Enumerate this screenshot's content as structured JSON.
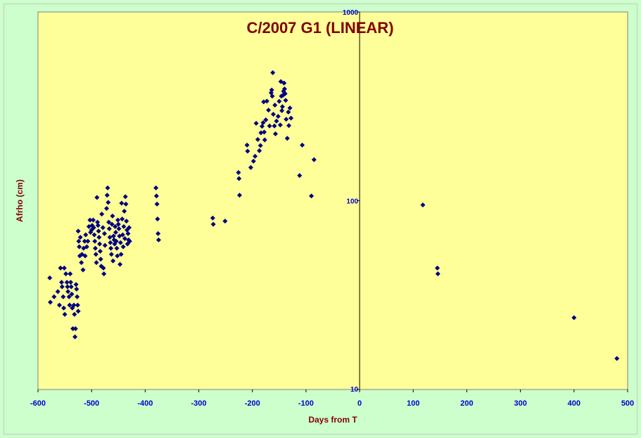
{
  "chart_data": {
    "type": "scatter",
    "title": "C/2007 G1 (LINEAR)",
    "xlabel": "Days from T",
    "ylabel": "Afrho (cm)",
    "xlim": [
      -600,
      500
    ],
    "ylim": [
      10,
      1000
    ],
    "y_scale": "log",
    "x_ticks": [
      -600,
      -500,
      -400,
      -300,
      -200,
      -100,
      0,
      100,
      200,
      300,
      400,
      500
    ],
    "y_ticks": [
      10,
      100,
      1000
    ],
    "grid": false,
    "legend": "none",
    "colors": {
      "plot_bg": "#ffff99",
      "page_bg": "#ccffcc",
      "marker": "#000080",
      "text": "#800000",
      "ticks": "#0000cc"
    },
    "series": [
      {
        "points": [
          [
            -578,
            39
          ],
          [
            -577,
            29
          ],
          [
            -570,
            31
          ],
          [
            -563,
            33
          ],
          [
            -560,
            28
          ],
          [
            -558,
            44
          ],
          [
            -556,
            37
          ],
          [
            -555,
            35
          ],
          [
            -553,
            31
          ],
          [
            -552,
            27
          ],
          [
            -551,
            44
          ],
          [
            -550,
            25
          ],
          [
            -548,
            41
          ],
          [
            -546,
            37
          ],
          [
            -545,
            35
          ],
          [
            -544,
            33
          ],
          [
            -542,
            31
          ],
          [
            -541,
            28
          ],
          [
            -540,
            41
          ],
          [
            -539,
            37
          ],
          [
            -538,
            35
          ],
          [
            -537,
            32
          ],
          [
            -536,
            27
          ],
          [
            -535,
            21
          ],
          [
            -533,
            28
          ],
          [
            -532,
            25
          ],
          [
            -531,
            19
          ],
          [
            -530,
            21
          ],
          [
            -529,
            36
          ],
          [
            -528,
            34
          ],
          [
            -527,
            31
          ],
          [
            -526,
            28
          ],
          [
            -525,
            26
          ],
          [
            -525,
            69
          ],
          [
            -524,
            61
          ],
          [
            -523,
            57
          ],
          [
            -522,
            51
          ],
          [
            -521,
            64
          ],
          [
            -519,
            47
          ],
          [
            -518,
            52
          ],
          [
            -516,
            43
          ],
          [
            -515,
            56
          ],
          [
            -513,
            61
          ],
          [
            -512,
            51
          ],
          [
            -511,
            66
          ],
          [
            -509,
            57
          ],
          [
            -507,
            61
          ],
          [
            -505,
            73
          ],
          [
            -503,
            79
          ],
          [
            -502,
            68
          ],
          [
            -500,
            70
          ],
          [
            -499,
            74
          ],
          [
            -497,
            79
          ],
          [
            -496,
            72
          ],
          [
            -495,
            66
          ],
          [
            -494,
            61
          ],
          [
            -493,
            56
          ],
          [
            -492,
            52
          ],
          [
            -491,
            47
          ],
          [
            -490,
            104
          ],
          [
            -489,
            77
          ],
          [
            -488,
            74
          ],
          [
            -487,
            69
          ],
          [
            -486,
            64
          ],
          [
            -485,
            59
          ],
          [
            -484,
            54
          ],
          [
            -483,
            49
          ],
          [
            -482,
            45
          ],
          [
            -481,
            85
          ],
          [
            -479,
            72
          ],
          [
            -478,
            44
          ],
          [
            -477,
            41
          ],
          [
            -476,
            67
          ],
          [
            -475,
            58
          ],
          [
            -472,
            91
          ],
          [
            -471,
            107
          ],
          [
            -470,
            117
          ],
          [
            -469,
            98
          ],
          [
            -468,
            77
          ],
          [
            -467,
            71
          ],
          [
            -466,
            64
          ],
          [
            -465,
            60
          ],
          [
            -464,
            56
          ],
          [
            -463,
            52
          ],
          [
            -462,
            75
          ],
          [
            -461,
            83
          ],
          [
            -460,
            48
          ],
          [
            -459,
            65
          ],
          [
            -458,
            62
          ],
          [
            -457,
            59
          ],
          [
            -456,
            73
          ],
          [
            -455,
            68
          ],
          [
            -454,
            61
          ],
          [
            -453,
            56
          ],
          [
            -452,
            51
          ],
          [
            -451,
            79
          ],
          [
            -450,
            75
          ],
          [
            -449,
            71
          ],
          [
            -448,
            65
          ],
          [
            -447,
            46
          ],
          [
            -446,
            60
          ],
          [
            -445,
            52
          ],
          [
            -444,
            97
          ],
          [
            -443,
            80
          ],
          [
            -442,
            66
          ],
          [
            -441,
            57
          ],
          [
            -440,
            73
          ],
          [
            -439,
            88
          ],
          [
            -438,
            63
          ],
          [
            -437,
            105
          ],
          [
            -436,
            96
          ],
          [
            -435,
            78
          ],
          [
            -434,
            70
          ],
          [
            -433,
            59
          ],
          [
            -432,
            67
          ],
          [
            -431,
            62
          ],
          [
            -430,
            72
          ],
          [
            -429,
            61
          ],
          [
            -380,
            117
          ],
          [
            -379,
            106
          ],
          [
            -378,
            96
          ],
          [
            -377,
            80
          ],
          [
            -376,
            67
          ],
          [
            -375,
            62
          ],
          [
            -274,
            81
          ],
          [
            -273,
            75
          ],
          [
            -251,
            78
          ],
          [
            -226,
            141
          ],
          [
            -225,
            131
          ],
          [
            -224,
            107
          ],
          [
            -210,
            197
          ],
          [
            -209,
            183
          ],
          [
            -203,
            150
          ],
          [
            -198,
            162
          ],
          [
            -195,
            172
          ],
          [
            -193,
            257
          ],
          [
            -190,
            211
          ],
          [
            -187,
            184
          ],
          [
            -185,
            196
          ],
          [
            -184,
            229
          ],
          [
            -182,
            248
          ],
          [
            -180,
            259
          ],
          [
            -179,
            334
          ],
          [
            -178,
            231
          ],
          [
            -177,
            210
          ],
          [
            -175,
            268
          ],
          [
            -173,
            337
          ],
          [
            -170,
            302
          ],
          [
            -168,
            249
          ],
          [
            -165,
            373
          ],
          [
            -164,
            386
          ],
          [
            -163,
            358
          ],
          [
            -162,
            477
          ],
          [
            -161,
            287
          ],
          [
            -159,
            249
          ],
          [
            -158,
            321
          ],
          [
            -157,
            226
          ],
          [
            -155,
            264
          ],
          [
            -152,
            280
          ],
          [
            -150,
            336
          ],
          [
            -148,
            252
          ],
          [
            -147,
            428
          ],
          [
            -146,
            358
          ],
          [
            -145,
            300
          ],
          [
            -144,
            315
          ],
          [
            -143,
            362
          ],
          [
            -142,
            380
          ],
          [
            -141,
            420
          ],
          [
            -140,
            391
          ],
          [
            -139,
            369
          ],
          [
            -138,
            340
          ],
          [
            -137,
            270
          ],
          [
            -135,
            214
          ],
          [
            -133,
            295
          ],
          [
            -132,
            250
          ],
          [
            -130,
            310
          ],
          [
            -128,
            274
          ],
          [
            -112,
            136
          ],
          [
            -107,
            197
          ],
          [
            -90,
            106
          ],
          [
            -85,
            165
          ],
          [
            118,
            95
          ],
          [
            145,
            44
          ],
          [
            146,
            41
          ],
          [
            400,
            24
          ],
          [
            480,
            14.6
          ]
        ]
      }
    ]
  }
}
